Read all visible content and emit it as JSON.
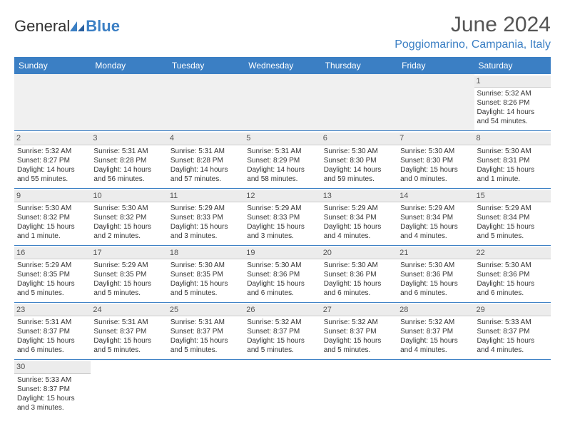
{
  "logo": {
    "text1": "General",
    "text2": "Blue"
  },
  "title": "June 2024",
  "location": "Poggiomarino, Campania, Italy",
  "colors": {
    "header_bg": "#3b7fc4",
    "header_text": "#ffffff",
    "daynum_bg": "#ececec",
    "border": "#3b7fc4",
    "text": "#333333",
    "accent": "#3b7fc4"
  },
  "typography": {
    "title_fontsize": 30,
    "location_fontsize": 16,
    "header_fontsize": 12,
    "cell_fontsize": 10
  },
  "weekdays": [
    "Sunday",
    "Monday",
    "Tuesday",
    "Wednesday",
    "Thursday",
    "Friday",
    "Saturday"
  ],
  "weeks": [
    [
      null,
      null,
      null,
      null,
      null,
      null,
      {
        "n": "1",
        "sr": "Sunrise: 5:32 AM",
        "ss": "Sunset: 8:26 PM",
        "d1": "Daylight: 14 hours",
        "d2": "and 54 minutes."
      }
    ],
    [
      {
        "n": "2",
        "sr": "Sunrise: 5:32 AM",
        "ss": "Sunset: 8:27 PM",
        "d1": "Daylight: 14 hours",
        "d2": "and 55 minutes."
      },
      {
        "n": "3",
        "sr": "Sunrise: 5:31 AM",
        "ss": "Sunset: 8:28 PM",
        "d1": "Daylight: 14 hours",
        "d2": "and 56 minutes."
      },
      {
        "n": "4",
        "sr": "Sunrise: 5:31 AM",
        "ss": "Sunset: 8:28 PM",
        "d1": "Daylight: 14 hours",
        "d2": "and 57 minutes."
      },
      {
        "n": "5",
        "sr": "Sunrise: 5:31 AM",
        "ss": "Sunset: 8:29 PM",
        "d1": "Daylight: 14 hours",
        "d2": "and 58 minutes."
      },
      {
        "n": "6",
        "sr": "Sunrise: 5:30 AM",
        "ss": "Sunset: 8:30 PM",
        "d1": "Daylight: 14 hours",
        "d2": "and 59 minutes."
      },
      {
        "n": "7",
        "sr": "Sunrise: 5:30 AM",
        "ss": "Sunset: 8:30 PM",
        "d1": "Daylight: 15 hours",
        "d2": "and 0 minutes."
      },
      {
        "n": "8",
        "sr": "Sunrise: 5:30 AM",
        "ss": "Sunset: 8:31 PM",
        "d1": "Daylight: 15 hours",
        "d2": "and 1 minute."
      }
    ],
    [
      {
        "n": "9",
        "sr": "Sunrise: 5:30 AM",
        "ss": "Sunset: 8:32 PM",
        "d1": "Daylight: 15 hours",
        "d2": "and 1 minute."
      },
      {
        "n": "10",
        "sr": "Sunrise: 5:30 AM",
        "ss": "Sunset: 8:32 PM",
        "d1": "Daylight: 15 hours",
        "d2": "and 2 minutes."
      },
      {
        "n": "11",
        "sr": "Sunrise: 5:29 AM",
        "ss": "Sunset: 8:33 PM",
        "d1": "Daylight: 15 hours",
        "d2": "and 3 minutes."
      },
      {
        "n": "12",
        "sr": "Sunrise: 5:29 AM",
        "ss": "Sunset: 8:33 PM",
        "d1": "Daylight: 15 hours",
        "d2": "and 3 minutes."
      },
      {
        "n": "13",
        "sr": "Sunrise: 5:29 AM",
        "ss": "Sunset: 8:34 PM",
        "d1": "Daylight: 15 hours",
        "d2": "and 4 minutes."
      },
      {
        "n": "14",
        "sr": "Sunrise: 5:29 AM",
        "ss": "Sunset: 8:34 PM",
        "d1": "Daylight: 15 hours",
        "d2": "and 4 minutes."
      },
      {
        "n": "15",
        "sr": "Sunrise: 5:29 AM",
        "ss": "Sunset: 8:34 PM",
        "d1": "Daylight: 15 hours",
        "d2": "and 5 minutes."
      }
    ],
    [
      {
        "n": "16",
        "sr": "Sunrise: 5:29 AM",
        "ss": "Sunset: 8:35 PM",
        "d1": "Daylight: 15 hours",
        "d2": "and 5 minutes."
      },
      {
        "n": "17",
        "sr": "Sunrise: 5:29 AM",
        "ss": "Sunset: 8:35 PM",
        "d1": "Daylight: 15 hours",
        "d2": "and 5 minutes."
      },
      {
        "n": "18",
        "sr": "Sunrise: 5:30 AM",
        "ss": "Sunset: 8:35 PM",
        "d1": "Daylight: 15 hours",
        "d2": "and 5 minutes."
      },
      {
        "n": "19",
        "sr": "Sunrise: 5:30 AM",
        "ss": "Sunset: 8:36 PM",
        "d1": "Daylight: 15 hours",
        "d2": "and 6 minutes."
      },
      {
        "n": "20",
        "sr": "Sunrise: 5:30 AM",
        "ss": "Sunset: 8:36 PM",
        "d1": "Daylight: 15 hours",
        "d2": "and 6 minutes."
      },
      {
        "n": "21",
        "sr": "Sunrise: 5:30 AM",
        "ss": "Sunset: 8:36 PM",
        "d1": "Daylight: 15 hours",
        "d2": "and 6 minutes."
      },
      {
        "n": "22",
        "sr": "Sunrise: 5:30 AM",
        "ss": "Sunset: 8:36 PM",
        "d1": "Daylight: 15 hours",
        "d2": "and 6 minutes."
      }
    ],
    [
      {
        "n": "23",
        "sr": "Sunrise: 5:31 AM",
        "ss": "Sunset: 8:37 PM",
        "d1": "Daylight: 15 hours",
        "d2": "and 6 minutes."
      },
      {
        "n": "24",
        "sr": "Sunrise: 5:31 AM",
        "ss": "Sunset: 8:37 PM",
        "d1": "Daylight: 15 hours",
        "d2": "and 5 minutes."
      },
      {
        "n": "25",
        "sr": "Sunrise: 5:31 AM",
        "ss": "Sunset: 8:37 PM",
        "d1": "Daylight: 15 hours",
        "d2": "and 5 minutes."
      },
      {
        "n": "26",
        "sr": "Sunrise: 5:32 AM",
        "ss": "Sunset: 8:37 PM",
        "d1": "Daylight: 15 hours",
        "d2": "and 5 minutes."
      },
      {
        "n": "27",
        "sr": "Sunrise: 5:32 AM",
        "ss": "Sunset: 8:37 PM",
        "d1": "Daylight: 15 hours",
        "d2": "and 5 minutes."
      },
      {
        "n": "28",
        "sr": "Sunrise: 5:32 AM",
        "ss": "Sunset: 8:37 PM",
        "d1": "Daylight: 15 hours",
        "d2": "and 4 minutes."
      },
      {
        "n": "29",
        "sr": "Sunrise: 5:33 AM",
        "ss": "Sunset: 8:37 PM",
        "d1": "Daylight: 15 hours",
        "d2": "and 4 minutes."
      }
    ],
    [
      {
        "n": "30",
        "sr": "Sunrise: 5:33 AM",
        "ss": "Sunset: 8:37 PM",
        "d1": "Daylight: 15 hours",
        "d2": "and 3 minutes."
      },
      null,
      null,
      null,
      null,
      null,
      null
    ]
  ]
}
